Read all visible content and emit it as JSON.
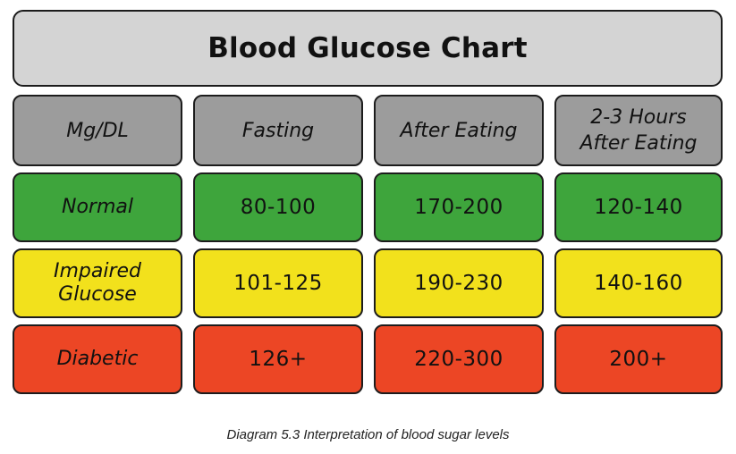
{
  "chart_data": {
    "type": "table",
    "title": "Blood Glucose Chart",
    "columns": [
      "Mg/DL",
      "Fasting",
      "After Eating",
      "2-3 Hours\nAfter Eating"
    ],
    "rows": [
      {
        "label": "Normal",
        "color": "#3ea53c",
        "values": [
          "80-100",
          "170-200",
          "120-140"
        ]
      },
      {
        "label": "Impaired\nGlucose",
        "color": "#f2e11c",
        "values": [
          "101-125",
          "190-230",
          "140-160"
        ]
      },
      {
        "label": "Diabetic",
        "color": "#ec4625",
        "values": [
          "126+",
          "220-300",
          "200+"
        ]
      }
    ]
  },
  "caption": "Diagram 5.3 Interpretation of blood sugar levels",
  "colors": {
    "header": "#9c9c9c",
    "title_bg": "#d4d4d4",
    "border": "#1c1c1c"
  }
}
